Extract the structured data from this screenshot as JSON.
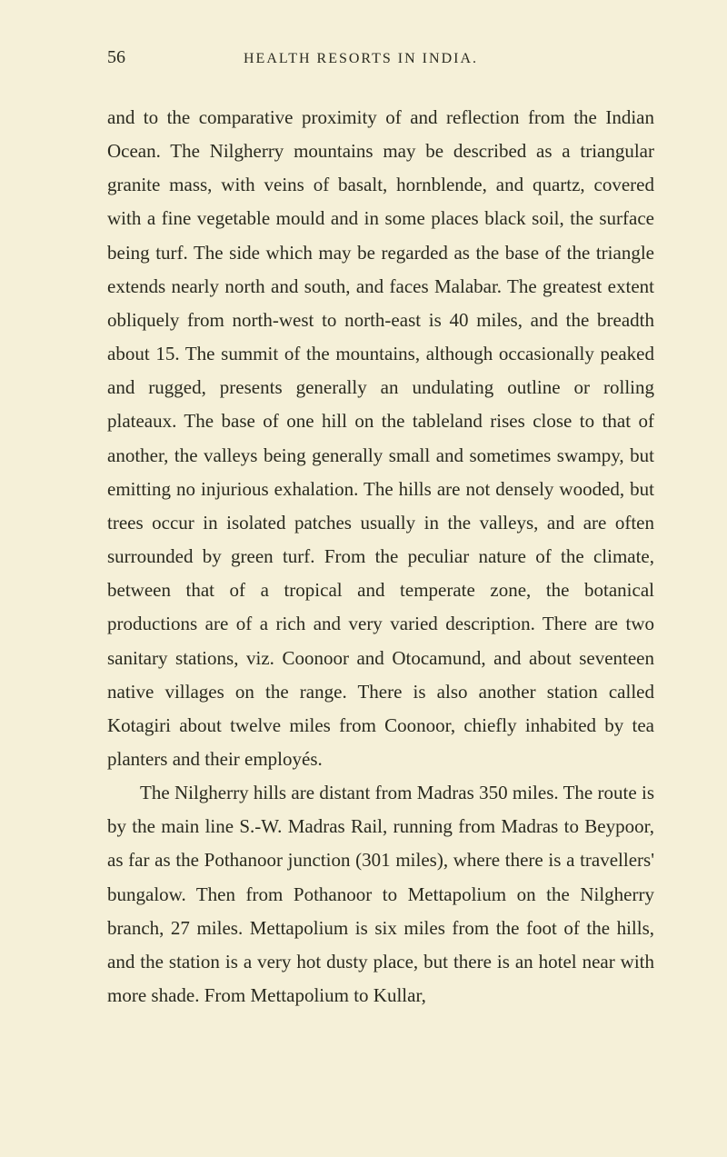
{
  "page": {
    "number": "56",
    "runningTitle": "HEALTH RESORTS IN INDIA.",
    "paragraphs": [
      "and to the comparative proximity of and reflection from the Indian Ocean. The Nilgherry mountains may be described as a triangular granite mass, with veins of basalt, hornblende, and quartz, covered with a fine vegetable mould and in some places black soil, the surface being turf. The side which may be regarded as the base of the triangle extends nearly north and south, and faces Malabar. The greatest extent ob­liquely from north-west to north-east is 40 miles, and the breadth about 15. The summit of the mountains, although occasionally peaked and rugged, presents generally an undulating outline or rolling plateaux. The base of one hill on the tableland rises close to that of another, the valleys being generally small and some­times swampy, but emitting no injurious exhalation. The hills are not densely wooded, but trees occur in isolated patches usually in the valleys, and are often surrounded by green turf. From the peculiar nature of the climate, between that of a tropical and temperate zone, the botanical productions are of a rich and very varied description. There are two sanitary stations, viz. Coonoor and Otocamund, and about seventeen native villages on the range. There is also another station called Kotagiri about twelve miles from Coonoor, chiefly inhabited by tea planters and their employés.",
      "The Nilgherry hills are distant from Madras 350 miles. The route is by the main line S.-W. Madras Rail, running from Madras to Beypoor, as far as the Pothanoor junction (301 miles), where there is a travellers' bungalow. Then from Pothanoor to Metta­polium on the Nilgherry branch, 27 miles. Metta­polium is six miles from the foot of the hills, and the station is a very hot dusty place, but there is an hotel near with more shade. From Mettapolium to Kullar,"
    ]
  },
  "styles": {
    "background_color": "#f5f0d8",
    "text_color": "#2a2a1f",
    "body_fontsize": 21,
    "body_lineheight": 1.77,
    "pagenum_fontsize": 20,
    "title_fontsize": 16,
    "title_letterspacing": 2,
    "indent": 36
  }
}
